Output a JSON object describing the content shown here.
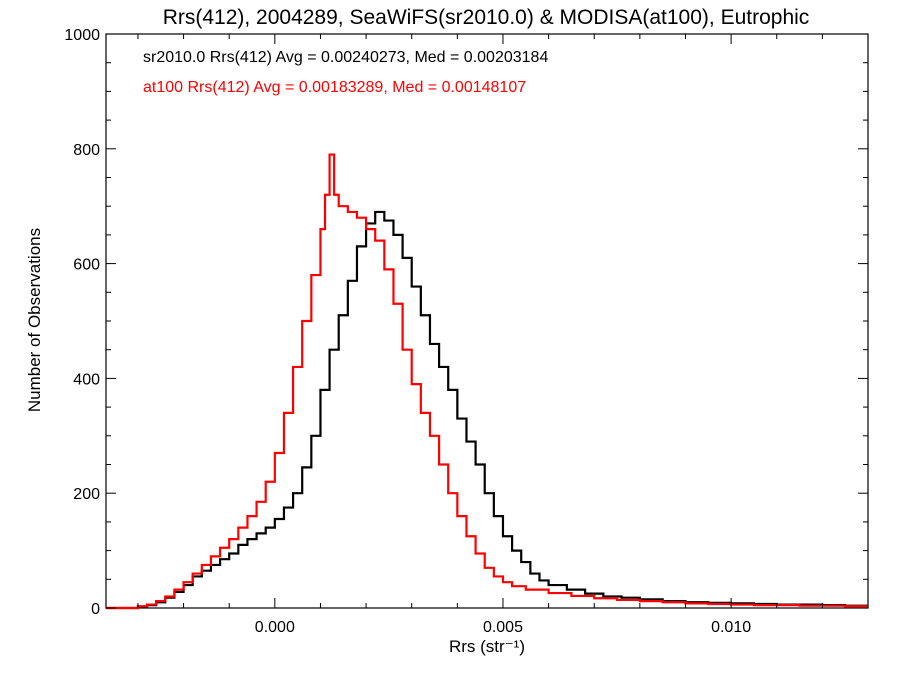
{
  "chart_data": {
    "type": "line",
    "title": "Rrs(412), 2004289, SeaWiFS(sr2010.0) & MODISA(at100), Eutrophic",
    "xlabel": "Rrs (str⁻¹)",
    "ylabel": "Number of Observations",
    "xlim": [
      -0.0037,
      0.013
    ],
    "ylim": [
      0,
      1000
    ],
    "x_ticks": [
      0.0,
      0.005,
      0.01
    ],
    "x_tick_labels": [
      "0.000",
      "0.005",
      "0.010"
    ],
    "y_ticks": [
      0,
      200,
      400,
      600,
      800,
      1000
    ],
    "y_tick_labels": [
      "0",
      "200",
      "400",
      "600",
      "800",
      "1000"
    ],
    "grid": false,
    "step": "histogram",
    "annotations": [
      {
        "text": "sr2010.0 Rrs(412) Avg = 0.00240273, Med = 0.00203184",
        "color": "#000000"
      },
      {
        "text": "at100 Rrs(412) Avg = 0.00183289, Med = 0.00148107",
        "color": "#ff0000"
      }
    ],
    "series": [
      {
        "color": "#000000",
        "points": [
          [
            -0.0037,
            0
          ],
          [
            -0.003,
            2
          ],
          [
            -0.0028,
            5
          ],
          [
            -0.0026,
            10
          ],
          [
            -0.0024,
            18
          ],
          [
            -0.0022,
            28
          ],
          [
            -0.002,
            40
          ],
          [
            -0.0018,
            55
          ],
          [
            -0.0016,
            65
          ],
          [
            -0.0014,
            75
          ],
          [
            -0.0012,
            85
          ],
          [
            -0.001,
            95
          ],
          [
            -0.0008,
            110
          ],
          [
            -0.0006,
            120
          ],
          [
            -0.0004,
            130
          ],
          [
            -0.0002,
            140
          ],
          [
            0.0,
            155
          ],
          [
            0.0002,
            175
          ],
          [
            0.0004,
            200
          ],
          [
            0.0006,
            245
          ],
          [
            0.0008,
            300
          ],
          [
            0.001,
            380
          ],
          [
            0.0012,
            450
          ],
          [
            0.0014,
            510
          ],
          [
            0.0016,
            570
          ],
          [
            0.0018,
            630
          ],
          [
            0.002,
            670
          ],
          [
            0.0022,
            690
          ],
          [
            0.0024,
            675
          ],
          [
            0.0026,
            650
          ],
          [
            0.0028,
            610
          ],
          [
            0.003,
            560
          ],
          [
            0.0032,
            510
          ],
          [
            0.0034,
            460
          ],
          [
            0.0036,
            420
          ],
          [
            0.0038,
            380
          ],
          [
            0.004,
            330
          ],
          [
            0.0042,
            290
          ],
          [
            0.0044,
            250
          ],
          [
            0.0046,
            200
          ],
          [
            0.0048,
            160
          ],
          [
            0.005,
            125
          ],
          [
            0.0052,
            100
          ],
          [
            0.0054,
            80
          ],
          [
            0.0056,
            60
          ],
          [
            0.0058,
            48
          ],
          [
            0.006,
            40
          ],
          [
            0.0064,
            32
          ],
          [
            0.0068,
            25
          ],
          [
            0.0072,
            20
          ],
          [
            0.0076,
            18
          ],
          [
            0.008,
            15
          ],
          [
            0.0085,
            12
          ],
          [
            0.009,
            10
          ],
          [
            0.0095,
            9
          ],
          [
            0.01,
            8
          ],
          [
            0.0105,
            7
          ],
          [
            0.011,
            6
          ],
          [
            0.0115,
            6
          ],
          [
            0.012,
            5
          ],
          [
            0.0125,
            4
          ],
          [
            0.013,
            4
          ]
        ]
      },
      {
        "color": "#ff0000",
        "points": [
          [
            -0.0037,
            0
          ],
          [
            -0.003,
            3
          ],
          [
            -0.0028,
            6
          ],
          [
            -0.0026,
            12
          ],
          [
            -0.0024,
            20
          ],
          [
            -0.0022,
            32
          ],
          [
            -0.002,
            45
          ],
          [
            -0.0018,
            60
          ],
          [
            -0.0016,
            75
          ],
          [
            -0.0014,
            90
          ],
          [
            -0.0012,
            105
          ],
          [
            -0.001,
            120
          ],
          [
            -0.0008,
            140
          ],
          [
            -0.0006,
            160
          ],
          [
            -0.0004,
            185
          ],
          [
            -0.0002,
            220
          ],
          [
            0.0,
            270
          ],
          [
            0.0002,
            340
          ],
          [
            0.0004,
            420
          ],
          [
            0.0006,
            500
          ],
          [
            0.0008,
            580
          ],
          [
            0.001,
            660
          ],
          [
            0.0011,
            720
          ],
          [
            0.0012,
            790
          ],
          [
            0.0013,
            720
          ],
          [
            0.0014,
            700
          ],
          [
            0.0016,
            690
          ],
          [
            0.0018,
            680
          ],
          [
            0.002,
            660
          ],
          [
            0.0022,
            640
          ],
          [
            0.0024,
            590
          ],
          [
            0.0026,
            530
          ],
          [
            0.0028,
            450
          ],
          [
            0.003,
            390
          ],
          [
            0.0032,
            340
          ],
          [
            0.0034,
            300
          ],
          [
            0.0036,
            250
          ],
          [
            0.0038,
            200
          ],
          [
            0.004,
            160
          ],
          [
            0.0042,
            125
          ],
          [
            0.0044,
            95
          ],
          [
            0.0046,
            70
          ],
          [
            0.0048,
            55
          ],
          [
            0.005,
            45
          ],
          [
            0.0052,
            38
          ],
          [
            0.0055,
            32
          ],
          [
            0.006,
            26
          ],
          [
            0.0065,
            21
          ],
          [
            0.007,
            17
          ],
          [
            0.0075,
            14
          ],
          [
            0.008,
            12
          ],
          [
            0.0085,
            10
          ],
          [
            0.009,
            8
          ],
          [
            0.0095,
            7
          ],
          [
            0.01,
            6
          ],
          [
            0.0105,
            5
          ],
          [
            0.011,
            5
          ],
          [
            0.0115,
            4
          ],
          [
            0.012,
            4
          ],
          [
            0.0125,
            3
          ],
          [
            0.013,
            3
          ]
        ]
      }
    ]
  }
}
